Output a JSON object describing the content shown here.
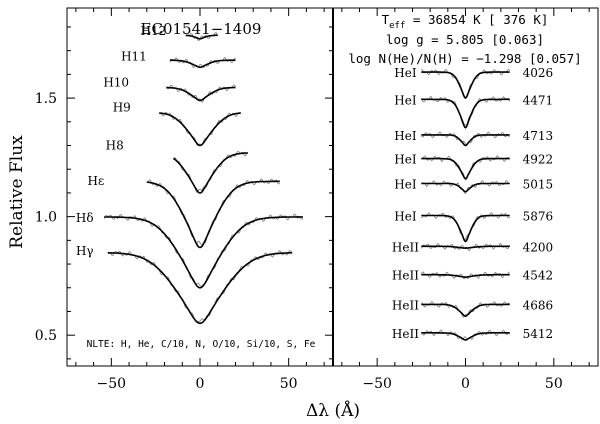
{
  "chart_data": {
    "type": "line",
    "ylabel": "Relative Flux",
    "xlabel": "Δλ (Å)",
    "left_panel": {
      "title": "EC01541−1409",
      "note": "NLTE: H, He, C/10, N, O/10, Si/10, S, Fe",
      "xlim": [
        -75,
        75
      ],
      "ylim": [
        0.37,
        1.88
      ],
      "xticks": [
        -50,
        0,
        50
      ],
      "xtick_labels": [
        "−50",
        "0",
        "50"
      ],
      "yticks": [
        0.5,
        1.0,
        1.5
      ],
      "ytick_labels": [
        "0.5",
        "1.0",
        "1.5"
      ],
      "series": [
        {
          "name": "H12",
          "x0": -8,
          "x1": 10,
          "baseline": 1.765,
          "depth": 0.015,
          "width": 3,
          "label_x": -19,
          "label_y": 1.783
        },
        {
          "name": "H11",
          "x0": -17,
          "x1": 20,
          "baseline": 1.66,
          "depth": 0.03,
          "width": 5,
          "label_x": -30,
          "label_y": 1.675
        },
        {
          "name": "H10",
          "x0": -19,
          "x1": 20,
          "baseline": 1.545,
          "depth": 0.055,
          "width": 6,
          "label_x": -40,
          "label_y": 1.565
        },
        {
          "name": "H9",
          "x0": -23,
          "x1": 23,
          "baseline": 1.44,
          "depth": 0.14,
          "width": 8,
          "label_x": -39,
          "label_y": 1.46
        },
        {
          "name": "H8",
          "x0": -15,
          "x1": 27,
          "baseline": 1.27,
          "depth": 0.17,
          "width": 8,
          "label_x": -43,
          "label_y": 1.3
        },
        {
          "name": "Hε",
          "x0": -30,
          "x1": 45,
          "baseline": 1.15,
          "depth": 0.28,
          "width": 10,
          "label_x": -54,
          "label_y": 1.15
        },
        {
          "name": "Hδ",
          "x0": -54,
          "x1": 58,
          "baseline": 1.0,
          "depth": 0.3,
          "width": 13,
          "label_x": -60,
          "label_y": 0.995
        },
        {
          "name": "Hγ",
          "x0": -52,
          "x1": 52,
          "baseline": 0.85,
          "depth": 0.3,
          "width": 15,
          "label_x": -60,
          "label_y": 0.855
        }
      ]
    },
    "right_panel": {
      "params": [
        "T_eff = 36854 K [ 376 K]",
        "log g = 5.805 [0.063]",
        "log N(He)/N(H) = −1.298 [0.057]"
      ],
      "xlim": [
        -75,
        75
      ],
      "xticks": [
        -50,
        0,
        50
      ],
      "xtick_labels": [
        "−50",
        "0",
        "50"
      ],
      "series": [
        {
          "name": "HeI",
          "wavelength": "4026",
          "baseline": 1.61,
          "depth": 0.11,
          "width": 3.5
        },
        {
          "name": "HeI",
          "wavelength": "4471",
          "baseline": 1.495,
          "depth": 0.12,
          "width": 3.5
        },
        {
          "name": "HeI",
          "wavelength": "4713",
          "baseline": 1.345,
          "depth": 0.045,
          "width": 3
        },
        {
          "name": "HeI",
          "wavelength": "4922",
          "baseline": 1.245,
          "depth": 0.085,
          "width": 3.5
        },
        {
          "name": "HeI",
          "wavelength": "5015",
          "baseline": 1.14,
          "depth": 0.035,
          "width": 3
        },
        {
          "name": "HeI",
          "wavelength": "5876",
          "baseline": 1.005,
          "depth": 0.11,
          "width": 3.5
        },
        {
          "name": "HeII",
          "wavelength": "4200",
          "baseline": 0.875,
          "depth": 0.008,
          "width": 5
        },
        {
          "name": "HeII",
          "wavelength": "4542",
          "baseline": 0.755,
          "depth": 0.01,
          "width": 5
        },
        {
          "name": "HeII",
          "wavelength": "4686",
          "baseline": 0.63,
          "depth": 0.05,
          "width": 4
        },
        {
          "name": "HeII",
          "wavelength": "5412",
          "baseline": 0.51,
          "depth": 0.03,
          "width": 4
        }
      ]
    }
  }
}
